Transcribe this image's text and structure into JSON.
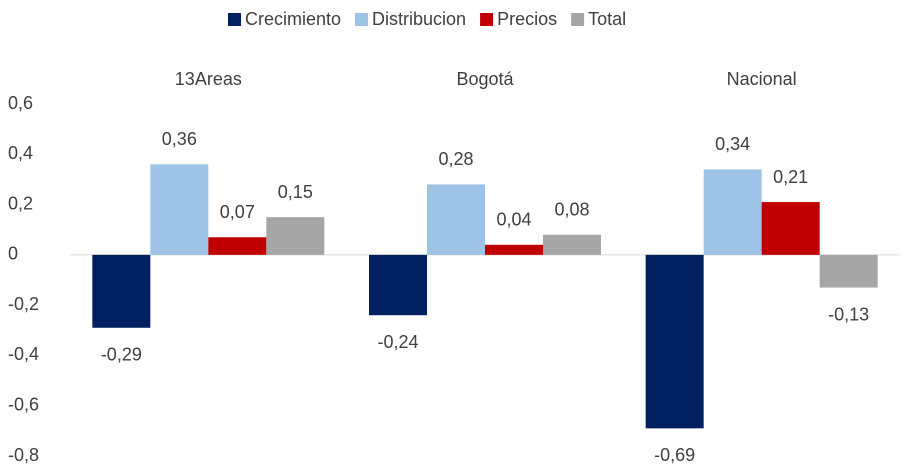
{
  "chart_data": {
    "type": "bar",
    "categories": [
      "13Areas",
      "Bogotá",
      "Nacional"
    ],
    "series": [
      {
        "name": "Crecimiento",
        "color": "#002060",
        "values": [
          -0.29,
          -0.24,
          -0.69
        ],
        "value_labels": [
          "-0,29",
          "-0,24",
          "-0,69"
        ]
      },
      {
        "name": "Distribucion",
        "color": "#9dc3e6",
        "values": [
          0.36,
          0.28,
          0.34
        ],
        "value_labels": [
          "0,36",
          "0,28",
          "0,34"
        ]
      },
      {
        "name": "Precios",
        "color": "#c00000",
        "values": [
          0.07,
          0.04,
          0.21
        ],
        "value_labels": [
          "0,07",
          "0,04",
          "0,21"
        ]
      },
      {
        "name": "Total",
        "color": "#a6a6a6",
        "values": [
          0.15,
          0.08,
          -0.13
        ],
        "value_labels": [
          "0,15",
          "0,08",
          "-0,13"
        ]
      }
    ],
    "ylim": [
      -0.8,
      0.6
    ],
    "yticks": [
      {
        "value": -0.8,
        "label": "-0,8"
      },
      {
        "value": -0.6,
        "label": "-0,6"
      },
      {
        "value": -0.4,
        "label": "-0,4"
      },
      {
        "value": -0.2,
        "label": "-0,2"
      },
      0,
      {
        "value": 0.2,
        "label": "0,2"
      },
      {
        "value": 0.4,
        "label": "0,4"
      },
      {
        "value": 0.6,
        "label": "0,6"
      }
    ],
    "grid": false,
    "legend": "top"
  }
}
